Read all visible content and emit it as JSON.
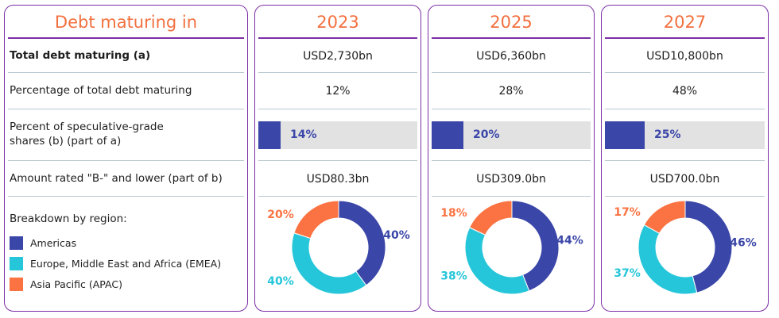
{
  "header_label": "Debt maturing in",
  "row_labels": {
    "total": "Total debt maturing (a)",
    "pct_total": "Percentage of total debt maturing",
    "spec_line1": "Percent of speculative-grade",
    "spec_line2": "shares (b) (part of a)",
    "low_rated": "Amount rated \"B-\" and lower (part of b)",
    "breakdown": "Breakdown by region:"
  },
  "legend": [
    {
      "name": "Americas",
      "color": "#3a46a8"
    },
    {
      "name": "Europe, Middle East and Africa (EMEA)",
      "color": "#26c6da"
    },
    {
      "name": "Asia Pacific (APAC)",
      "color": "#fb7342"
    }
  ],
  "columns": [
    {
      "year": "2023",
      "total": "USD2,730bn",
      "pct_total": "12%",
      "spec_label": "14%",
      "low_rated": "USD80.3bn"
    },
    {
      "year": "2025",
      "total": "USD6,360bn",
      "pct_total": "28%",
      "spec_label": "20%",
      "low_rated": "USD309.0bn"
    },
    {
      "year": "2027",
      "total": "USD10,800bn",
      "pct_total": "48%",
      "spec_label": "25%",
      "low_rated": "USD700.0bn"
    }
  ],
  "chart_data": [
    {
      "type": "bar",
      "title": "Percent of speculative-grade shares (b) (part of a)",
      "categories": [
        "2023",
        "2025",
        "2027"
      ],
      "values": [
        14,
        20,
        25
      ],
      "ylim": [
        0,
        100
      ]
    },
    {
      "type": "pie",
      "title": "2023",
      "categories": [
        "Americas",
        "Europe, Middle East and Africa (EMEA)",
        "Asia Pacific (APAC)"
      ],
      "values": [
        40,
        40,
        20
      ],
      "labels": [
        "40%",
        "40%",
        "20%"
      ]
    },
    {
      "type": "pie",
      "title": "2025",
      "categories": [
        "Americas",
        "Europe, Middle East and Africa (EMEA)",
        "Asia Pacific (APAC)"
      ],
      "values": [
        44,
        38,
        18
      ],
      "labels": [
        "44%",
        "38%",
        "18%"
      ]
    },
    {
      "type": "pie",
      "title": "2027",
      "categories": [
        "Americas",
        "Europe, Middle East and Africa (EMEA)",
        "Asia Pacific (APAC)"
      ],
      "values": [
        46,
        37,
        17
      ],
      "labels": [
        "46%",
        "37%",
        "17%"
      ]
    }
  ]
}
